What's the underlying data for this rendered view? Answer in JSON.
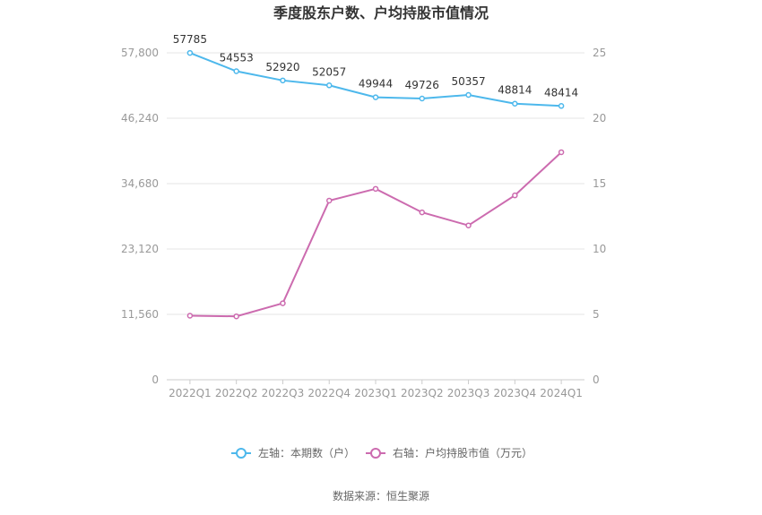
{
  "chart_data": {
    "type": "line",
    "title": "季度股东户数、户均持股市值情况",
    "categories": [
      "2022Q1",
      "2022Q2",
      "2022Q3",
      "2022Q4",
      "2023Q1",
      "2023Q2",
      "2023Q3",
      "2023Q4",
      "2024Q1"
    ],
    "left_axis": {
      "min": 0,
      "max": 57800,
      "ticks": [
        "0",
        "11,560",
        "23,120",
        "34,680",
        "46,240",
        "57,800"
      ]
    },
    "right_axis": {
      "min": 0,
      "max": 25,
      "ticks": [
        "0",
        "5",
        "10",
        "15",
        "20",
        "25"
      ]
    },
    "series": [
      {
        "name": "左轴：本期数（户）",
        "axis": "left",
        "color": "#4db8ec",
        "values": [
          57785,
          54553,
          52920,
          52057,
          49944,
          49726,
          50357,
          48814,
          48414
        ],
        "labels": [
          "57785",
          "54553",
          "52920",
          "52057",
          "49944",
          "49726",
          "50357",
          "48814",
          "48414"
        ]
      },
      {
        "name": "右轴：户均持股市值（万元）",
        "axis": "right",
        "color": "#cc6baf",
        "values": [
          4.9,
          4.85,
          5.85,
          13.7,
          14.6,
          12.8,
          11.8,
          14.1,
          17.4
        ]
      }
    ],
    "grid": true,
    "legend_position": "bottom"
  },
  "source": "数据来源：恒生聚源"
}
